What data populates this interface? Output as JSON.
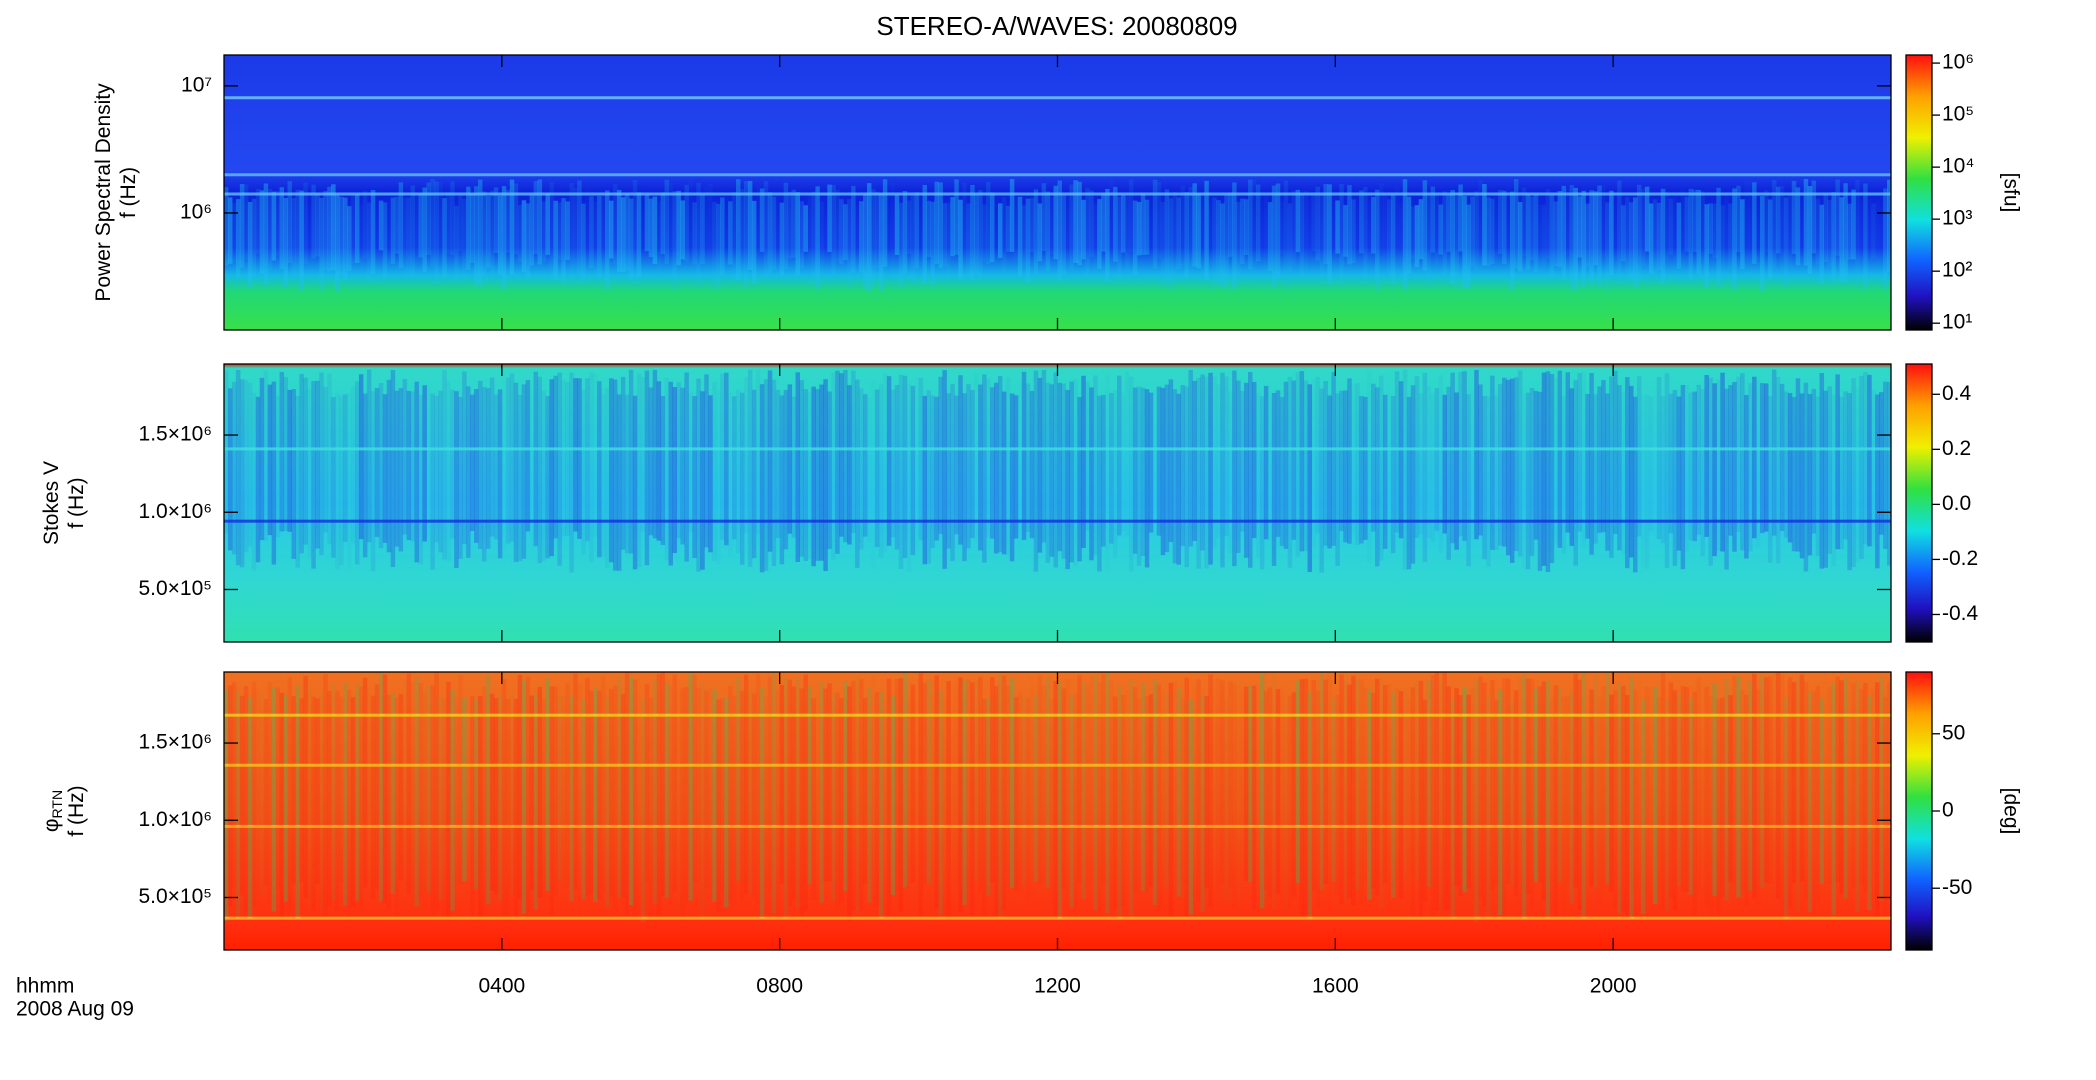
{
  "figure": {
    "title": "STEREO-A/WAVES: 20080809",
    "xlabel": "hhmm",
    "date": "2008 Aug 09",
    "xlim": [
      0,
      24
    ],
    "xticks": [
      {
        "value": 4,
        "label": "0400"
      },
      {
        "value": 8,
        "label": "0800"
      },
      {
        "value": 12,
        "label": "1200"
      },
      {
        "value": 16,
        "label": "1600"
      },
      {
        "value": 20,
        "label": "2000"
      }
    ]
  },
  "chart_data": [
    {
      "type": "heatmap",
      "ylabel": [
        "Power Spectral Density",
        "f (Hz)"
      ],
      "log": true,
      "ylim": [
        120000,
        17500000
      ],
      "yticks": [
        {
          "value": 1000000,
          "label": "10⁶"
        },
        {
          "value": 10000000,
          "label": "10⁷"
        }
      ],
      "colorbar_label": "[sfu]",
      "colorbar_log": true,
      "clim": [
        7.4,
        1430000
      ],
      "cticks": [
        {
          "value": 10,
          "label": "10¹"
        },
        {
          "value": 100,
          "label": "10²"
        },
        {
          "value": 1000,
          "label": "10³"
        },
        {
          "value": 10000,
          "label": "10⁴"
        },
        {
          "value": 100000,
          "label": "10⁵"
        },
        {
          "value": 1000000,
          "label": "10⁶"
        }
      ]
    },
    {
      "type": "heatmap",
      "ylabel": [
        "Stokes V",
        "f (Hz)"
      ],
      "log": false,
      "ylim": [
        160000,
        1960000
      ],
      "yticks": [
        {
          "value": 500000,
          "label": "5.0×10⁵"
        },
        {
          "value": 1000000,
          "label": "1.0×10⁶"
        },
        {
          "value": 1500000,
          "label": "1.5×10⁶"
        }
      ],
      "clim": [
        -0.5,
        0.51
      ],
      "cticks": [
        -0.4,
        -0.2,
        {
          "value": 0,
          "label": "0.0"
        },
        0.2,
        0.4
      ]
    },
    {
      "type": "heatmap",
      "ylabel": [
        "φ",
        "f (Hz)"
      ],
      "ylabel_subscript": "RTN",
      "log": false,
      "ylim": [
        160000,
        1960000
      ],
      "yticks": [
        {
          "value": 500000,
          "label": "5.0×10⁵"
        },
        {
          "value": 1000000,
          "label": "1.0×10⁶"
        },
        {
          "value": 1500000,
          "label": "1.5×10⁶"
        }
      ],
      "colorbar_label": "[deg]",
      "clim": [
        -90,
        90
      ],
      "cticks": [
        -50,
        0,
        50
      ]
    }
  ]
}
